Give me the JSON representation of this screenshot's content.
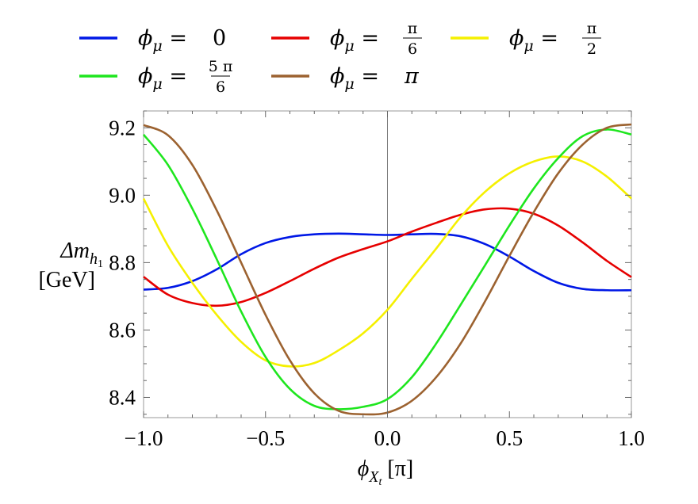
{
  "chart_data": {
    "type": "line",
    "xlabel_symbol": "ϕ",
    "xlabel_subscript": "X",
    "xlabel_subsubscript": "t",
    "xlabel_unit": "[π]",
    "ylabel_line1": "Δm",
    "ylabel_subscript": "h",
    "ylabel_subsubscript": "1",
    "ylabel_line2": "[GeV]",
    "xlim": [
      -1.0,
      1.0
    ],
    "ylim": [
      8.34,
      9.25
    ],
    "xticks": [
      -1.0,
      -0.5,
      0.0,
      0.5,
      1.0
    ],
    "xtick_labels": [
      "−1.0",
      "−0.5",
      "0.0",
      "0.5",
      "1.0"
    ],
    "yticks": [
      8.4,
      8.6,
      8.8,
      9.0,
      9.2
    ],
    "ytick_labels": [
      "8.4",
      "8.6",
      "8.8",
      "9.0",
      "9.2"
    ],
    "grid": false,
    "legend_placement": "top",
    "x": [
      -1.0,
      -0.9,
      -0.8,
      -0.7,
      -0.6,
      -0.5,
      -0.4,
      -0.3,
      -0.2,
      -0.1,
      0.0,
      0.1,
      0.2,
      0.3,
      0.4,
      0.5,
      0.6,
      0.7,
      0.8,
      0.9,
      1.0
    ],
    "series": [
      {
        "legend_lhs": "ϕ",
        "legend_sub": "μ",
        "legend_rhs": "0",
        "legend_frac_num": "",
        "legend_frac_den": "",
        "color": "#0018e6",
        "values": [
          8.72,
          8.725,
          8.745,
          8.78,
          8.825,
          8.858,
          8.876,
          8.884,
          8.886,
          8.884,
          8.882,
          8.884,
          8.885,
          8.878,
          8.855,
          8.818,
          8.775,
          8.74,
          8.722,
          8.718,
          8.718
        ]
      },
      {
        "legend_lhs": "ϕ",
        "legend_sub": "μ",
        "legend_rhs": "",
        "legend_frac_num": "π",
        "legend_frac_den": "6",
        "color": "#e60000",
        "values": [
          8.758,
          8.705,
          8.68,
          8.672,
          8.683,
          8.71,
          8.745,
          8.782,
          8.815,
          8.84,
          8.863,
          8.892,
          8.918,
          8.942,
          8.958,
          8.96,
          8.945,
          8.91,
          8.86,
          8.805,
          8.757
        ]
      },
      {
        "legend_lhs": "ϕ",
        "legend_sub": "μ",
        "legend_rhs": "",
        "legend_frac_num": "π",
        "legend_frac_den": "2",
        "color": "#f5f000",
        "values": [
          8.99,
          8.85,
          8.74,
          8.645,
          8.565,
          8.51,
          8.492,
          8.502,
          8.54,
          8.59,
          8.66,
          8.752,
          8.842,
          8.935,
          9.01,
          9.065,
          9.1,
          9.115,
          9.1,
          9.055,
          8.99
        ]
      },
      {
        "legend_lhs": "ϕ",
        "legend_sub": "μ",
        "legend_rhs": "",
        "legend_frac_num": "5 π",
        "legend_frac_den": "6",
        "color": "#1ee61e",
        "values": [
          9.18,
          9.09,
          8.96,
          8.81,
          8.655,
          8.52,
          8.425,
          8.375,
          8.365,
          8.372,
          8.395,
          8.46,
          8.56,
          8.675,
          8.792,
          8.91,
          9.02,
          9.11,
          9.175,
          9.195,
          9.18
        ]
      },
      {
        "legend_lhs": "ϕ",
        "legend_sub": "μ",
        "legend_rhs": "π",
        "legend_frac_num": "",
        "legend_frac_den": "",
        "color": "#9c6230",
        "values": [
          9.208,
          9.178,
          9.09,
          8.955,
          8.8,
          8.645,
          8.51,
          8.412,
          8.36,
          8.35,
          8.355,
          8.39,
          8.46,
          8.56,
          8.685,
          8.82,
          8.95,
          9.065,
          9.15,
          9.2,
          9.21
        ]
      }
    ]
  }
}
